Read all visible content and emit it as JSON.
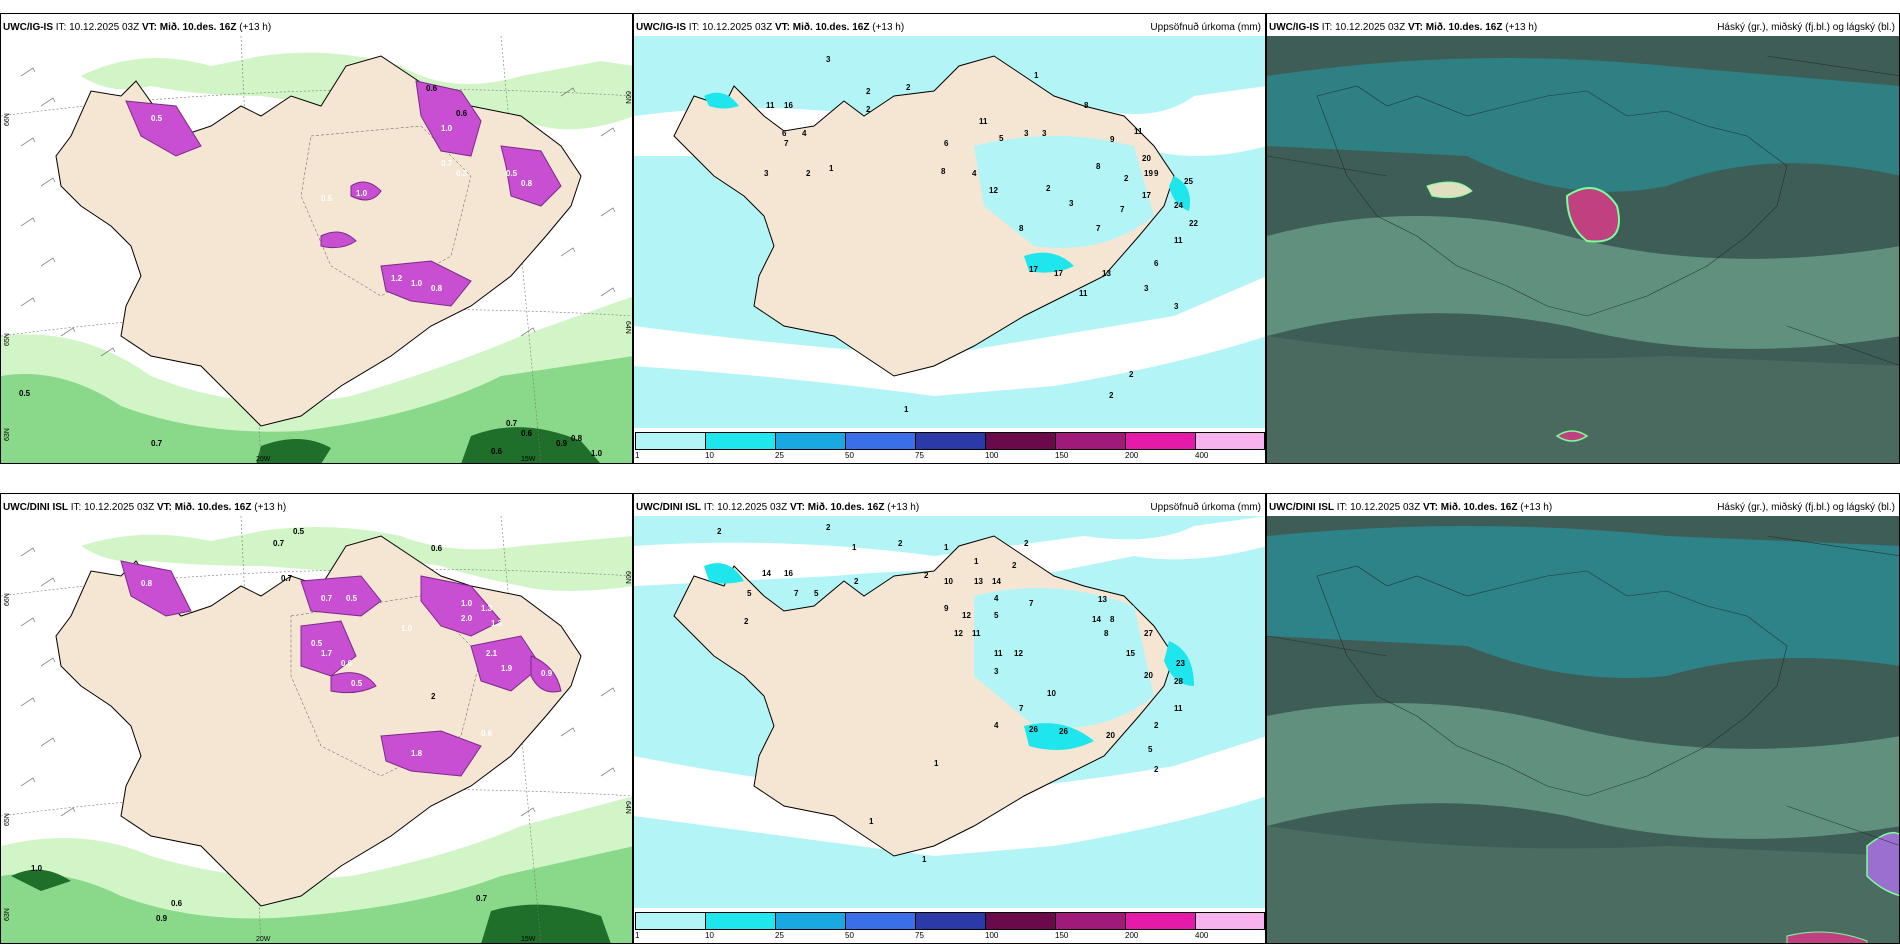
{
  "colors": {
    "land": "#f5e6d3",
    "precip_light": "#b3f5f7",
    "precip_mid": "#1ee6ec",
    "snow_magenta": "#c84fd2",
    "green_light": "#d2f5c8",
    "green_mid": "#8ad88a",
    "green_dark": "#1f6e2a",
    "cloud_dark": "#3f5d57",
    "cloud_teal": "#2a8a8f",
    "cloud_green": "#6fa88e"
  },
  "panels": [
    {
      "model": "UWC/IG-IS",
      "it_label": "IT: 10.12.2025 03Z",
      "vt_label": "VT: Mið. 10.des. 16Z",
      "lead": "(+13 h)",
      "title_right": "",
      "kind": "snow",
      "coords": {
        "lat_a": "66N",
        "lat_b": "65N",
        "lat_c": "64N",
        "lat_d": "63N",
        "lon_a": "20W",
        "lon_b": "15W"
      },
      "labels": [
        "0.6",
        "0.6",
        "1.0",
        "0.5",
        "1.0",
        "0.7",
        "0.5",
        "0.3",
        "0.5",
        "0.8",
        "1.2",
        "1.0",
        "0.8",
        "0.5",
        "0.7",
        "0.7",
        "0.6",
        "1.0",
        "0.6",
        "0.9",
        "0.8"
      ]
    },
    {
      "model": "UWC/IG-IS",
      "it_label": "IT: 10.12.2025 03Z",
      "vt_label": "VT: Mið. 10.des. 16Z",
      "lead": "(+13 h)",
      "title_right": "Uppsöfnuð úrkoma (mm)",
      "kind": "precip",
      "labels": [
        "3",
        "2",
        "2",
        "1",
        "11",
        "16",
        "2",
        "6",
        "7",
        "4",
        "2",
        "1",
        "3",
        "11",
        "6",
        "5",
        "3",
        "8",
        "3",
        "9",
        "11",
        "8",
        "4",
        "8",
        "12",
        "2",
        "3",
        "2",
        "9",
        "7",
        "8",
        "20",
        "19",
        "25",
        "17",
        "24",
        "22",
        "11",
        "6",
        "7",
        "17",
        "17",
        "13",
        "11",
        "3",
        "3",
        "2",
        "2",
        "1"
      ]
    },
    {
      "model": "UWC/IG-IS",
      "it_label": "IT: 10.12.2025 03Z",
      "vt_label": "VT: Mið. 10.des. 16Z",
      "lead": "(+13 h)",
      "title_right": "Háský (gr.), miðský (fj.bl.) og lágský (bl.)",
      "kind": "cloud"
    },
    {
      "model": "UWC/DINI ISL",
      "it_label": "IT: 10.12.2025 03Z",
      "vt_label": "VT: Mið. 10.des. 16Z",
      "lead": "(+13 h)",
      "title_right": "",
      "kind": "snow",
      "coords": {
        "lat_a": "66N",
        "lat_b": "65N",
        "lat_c": "64N",
        "lat_d": "63N",
        "lon_a": "20W",
        "lon_b": "15W"
      },
      "labels": [
        "0.7",
        "0.5",
        "0.6",
        "0.8",
        "0.7",
        "0.7",
        "0.5",
        "1.0",
        "1.3",
        "0.5",
        "1.7",
        "0.6",
        "1.0",
        "1.3",
        "2.0",
        "2.1",
        "1.9",
        "0.9",
        "0.5",
        "1.8",
        "0.6",
        "2",
        "1.0",
        "0.6",
        "0.9",
        "0.7"
      ]
    },
    {
      "model": "UWC/DINI ISL",
      "it_label": "IT: 10.12.2025 03Z",
      "vt_label": "VT: Mið. 10.des. 16Z",
      "lead": "(+13 h)",
      "title_right": "Uppsöfnuð úrkoma (mm)",
      "kind": "precip",
      "labels": [
        "2",
        "2",
        "1",
        "2",
        "1",
        "2",
        "1",
        "14",
        "16",
        "5",
        "7",
        "5",
        "2",
        "2",
        "2",
        "10",
        "13",
        "14",
        "2",
        "4",
        "12",
        "9",
        "12",
        "11",
        "5",
        "7",
        "11",
        "12",
        "13",
        "14",
        "8",
        "8",
        "27",
        "15",
        "20",
        "23",
        "28",
        "11",
        "3",
        "10",
        "4",
        "7",
        "26",
        "26",
        "20",
        "2",
        "5",
        "2",
        "1",
        "1",
        "1"
      ]
    },
    {
      "model": "UWC/DINI ISL",
      "it_label": "IT: 10.12.2025 03Z",
      "vt_label": "VT: Mið. 10.des. 16Z",
      "lead": "(+13 h)",
      "title_right": "Háský (gr.), miðský (fj.bl.) og lágský (bl.)",
      "kind": "cloud"
    }
  ],
  "colorbar": {
    "ticks": [
      "1",
      "10",
      "25",
      "50",
      "75",
      "100",
      "150",
      "200",
      "400"
    ],
    "colors": [
      "#b3f5f7",
      "#1ee6ec",
      "#1aa8e0",
      "#3a6fe8",
      "#2c3aa8",
      "#6a0a4a",
      "#a01a7a",
      "#e61aa8",
      "#f7b3ee"
    ]
  }
}
